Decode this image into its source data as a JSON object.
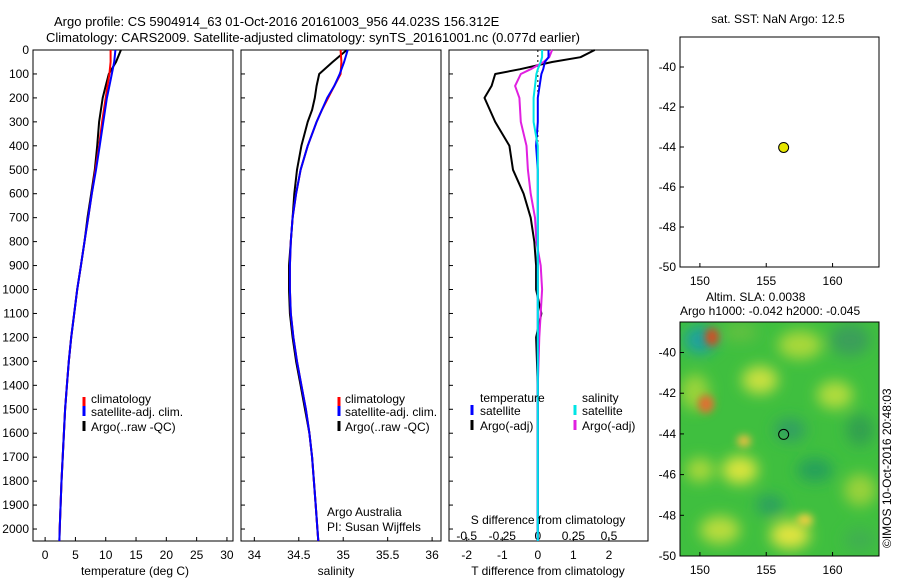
{
  "header": {
    "line1": "Argo profile: CS 5904914_63 01-Oct-2016 20161003_956 44.023S 156.312E",
    "line2": "Climatology: CARS2009. Satellite-adjusted climatology: synTS_20161001.nc (0.077d earlier)"
  },
  "colors": {
    "climatology": "#ff0000",
    "satellite": "#0000ff",
    "argo": "#000000",
    "salinity_sat": "#00e5e5",
    "salinity_argo": "#e020e0",
    "point_fill": "#e6e600"
  },
  "legend": {
    "climatology": "climatology",
    "satellite_adj": "satellite-adj. clim.",
    "argo_raw": "Argo(..raw -QC)",
    "diff_temp_head": "temperature",
    "diff_sal_head": "salinity",
    "satellite": "satellite",
    "argo_adj": "Argo(-adj)"
  },
  "annotations": {
    "credit1": "Argo Australia",
    "credit2": "PI: Susan Wijffels",
    "sst": "sat. SST: NaN Argo: 12.5",
    "sla1": "Altim. SLA: 0.0038",
    "sla2": "Argo h1000: -0.042 h2000: -0.045",
    "watermark": "©IMOS 10-Oct-2016 20:48:03"
  },
  "chart_data": [
    {
      "type": "line",
      "name": "temperature",
      "xlabel": "temperature (deg C)",
      "ylabel": "",
      "xlim": [
        -2,
        31
      ],
      "ylim": [
        2050,
        0
      ],
      "xticks": [
        "0",
        "5",
        "10",
        "15",
        "20",
        "25",
        "30"
      ],
      "yticks": [
        "0",
        "100",
        "200",
        "300",
        "400",
        "500",
        "600",
        "700",
        "800",
        "900",
        "1000",
        "1100",
        "1200",
        "1300",
        "1400",
        "1500",
        "1600",
        "1700",
        "1800",
        "1900",
        "2000"
      ],
      "depth": [
        0,
        50,
        100,
        150,
        200,
        300,
        400,
        500,
        600,
        700,
        800,
        900,
        1000,
        1100,
        1200,
        1300,
        1400,
        1500,
        1600,
        1700,
        1800,
        1900,
        2000,
        2050
      ],
      "series": [
        {
          "name": "climatology",
          "values": [
            10.8,
            10.8,
            10.6,
            10.3,
            10.0,
            9.4,
            8.9,
            8.3,
            7.7,
            7.1,
            6.5,
            5.9,
            5.3,
            4.8,
            4.3,
            3.9,
            3.6,
            3.3,
            3.1,
            2.9,
            2.7,
            2.55,
            2.4,
            2.35
          ]
        },
        {
          "name": "satellite-adj. clim.",
          "values": [
            11.6,
            11.4,
            11.0,
            10.6,
            10.2,
            9.6,
            9.0,
            8.4,
            7.7,
            7.1,
            6.5,
            5.9,
            5.3,
            4.8,
            4.3,
            3.9,
            3.6,
            3.3,
            3.1,
            2.9,
            2.7,
            2.55,
            2.4,
            2.35
          ]
        },
        {
          "name": "Argo(..raw -QC)",
          "values": [
            12.5,
            11.7,
            10.5,
            10.0,
            9.5,
            8.9,
            8.6,
            8.2,
            7.6,
            7.0,
            6.5,
            5.9,
            5.3,
            4.8,
            4.3,
            3.9,
            3.6,
            3.3,
            3.1,
            2.9,
            2.7,
            2.55,
            2.4,
            2.35
          ]
        }
      ]
    },
    {
      "type": "line",
      "name": "salinity",
      "xlabel": "salinity",
      "ylabel": "",
      "xlim": [
        33.85,
        36.1
      ],
      "ylim": [
        2050,
        0
      ],
      "xticks": [
        "34",
        "34.5",
        "35",
        "35.5",
        "36"
      ],
      "depth": [
        0,
        50,
        100,
        150,
        200,
        250,
        300,
        400,
        500,
        600,
        700,
        800,
        900,
        1000,
        1100,
        1200,
        1300,
        1400,
        1500,
        1600,
        1700,
        1800,
        1900,
        2000,
        2050
      ],
      "series": [
        {
          "name": "climatology",
          "values": [
            34.97,
            34.98,
            34.97,
            34.9,
            34.83,
            34.76,
            34.7,
            34.6,
            34.52,
            34.47,
            34.43,
            34.41,
            34.4,
            34.4,
            34.41,
            34.44,
            34.48,
            34.53,
            34.58,
            34.62,
            34.65,
            34.67,
            34.69,
            34.71,
            34.72
          ]
        },
        {
          "name": "satellite-adj. clim.",
          "values": [
            35.05,
            35.01,
            34.96,
            34.9,
            34.82,
            34.76,
            34.7,
            34.6,
            34.52,
            34.47,
            34.43,
            34.41,
            34.4,
            34.4,
            34.41,
            34.44,
            34.48,
            34.53,
            34.58,
            34.62,
            34.65,
            34.67,
            34.69,
            34.71,
            34.72
          ]
        },
        {
          "name": "Argo(..raw -QC)",
          "values": [
            35.04,
            34.88,
            34.73,
            34.7,
            34.68,
            34.65,
            34.6,
            34.53,
            34.48,
            34.45,
            34.43,
            34.41,
            34.39,
            34.39,
            34.4,
            34.43,
            34.47,
            34.52,
            34.57,
            34.62,
            34.65,
            34.67,
            34.69,
            34.71,
            34.72
          ]
        }
      ]
    },
    {
      "type": "line",
      "name": "difference from climatology",
      "xlabel": "T difference from climatology",
      "x2label": "S difference from climatology",
      "ylabel": "",
      "xlim": [
        -2.5,
        3.1
      ],
      "x2lim": [
        -0.625,
        0.775
      ],
      "ylim": [
        2050,
        0
      ],
      "xticks": [
        "-2",
        "-1",
        "0",
        "1",
        "2"
      ],
      "x2ticks": [
        "-0.5",
        "-0.25",
        "0",
        "0.25",
        "0.5"
      ],
      "depth": [
        0,
        30,
        50,
        80,
        100,
        150,
        200,
        300,
        400,
        500,
        600,
        700,
        800,
        900,
        1000,
        1100,
        1200,
        1400,
        1600,
        2000,
        2050
      ],
      "series": [
        {
          "name": "temperature satellite",
          "values": [
            0.3,
            0.3,
            0.2,
            0.15,
            0.1,
            0.05,
            0.0,
            0.0,
            -0.05,
            0.0,
            0.0,
            0.0,
            0.0,
            0.0,
            0.0,
            0.0,
            0.0,
            0.0,
            0.0,
            0.0,
            0.0
          ]
        },
        {
          "name": "temperature Argo(-adj)",
          "values": [
            1.6,
            1.2,
            0.4,
            -0.5,
            -1.2,
            -1.3,
            -1.5,
            -1.2,
            -0.8,
            -0.7,
            -0.4,
            -0.2,
            -0.1,
            -0.05,
            -0.05,
            0.1,
            -0.05,
            0.0,
            0.0,
            0.0,
            0.0
          ]
        },
        {
          "name": "salinity satellite",
          "values": [
            0.03,
            0.03,
            0.02,
            0.0,
            -0.01,
            -0.02,
            -0.03,
            -0.03,
            0.0,
            0.0,
            0.0,
            0.0,
            0.0,
            0.0,
            0.0,
            0.0,
            0.0,
            0.0,
            0.0,
            0.0,
            0.0
          ]
        },
        {
          "name": "salinity Argo(-adj)",
          "values": [
            0.1,
            0.08,
            0.04,
            -0.05,
            -0.12,
            -0.16,
            -0.13,
            -0.12,
            -0.08,
            -0.07,
            -0.05,
            -0.02,
            -0.01,
            0.02,
            0.03,
            0.02,
            0.01,
            0.0,
            0.0,
            0.0,
            0.0
          ]
        }
      ]
    },
    {
      "type": "scatter",
      "name": "map SST",
      "xlim": [
        148.5,
        163.5
      ],
      "ylim": [
        -50,
        -38.5
      ],
      "xticks": [
        "150",
        "155",
        "160"
      ],
      "yticks": [
        "-40",
        "-42",
        "-44",
        "-46",
        "-48",
        "-50"
      ],
      "points": [
        {
          "x": 156.312,
          "y": -44.023
        }
      ]
    },
    {
      "type": "heatmap",
      "name": "map SLA",
      "xlim": [
        148.5,
        163.5
      ],
      "ylim": [
        -50,
        -38.5
      ],
      "xticks": [
        "150",
        "155",
        "160"
      ],
      "yticks": [
        "-40",
        "-42",
        "-44",
        "-46",
        "-48",
        "-50"
      ],
      "points": [
        {
          "x": 156.312,
          "y": -44.023
        }
      ]
    }
  ]
}
